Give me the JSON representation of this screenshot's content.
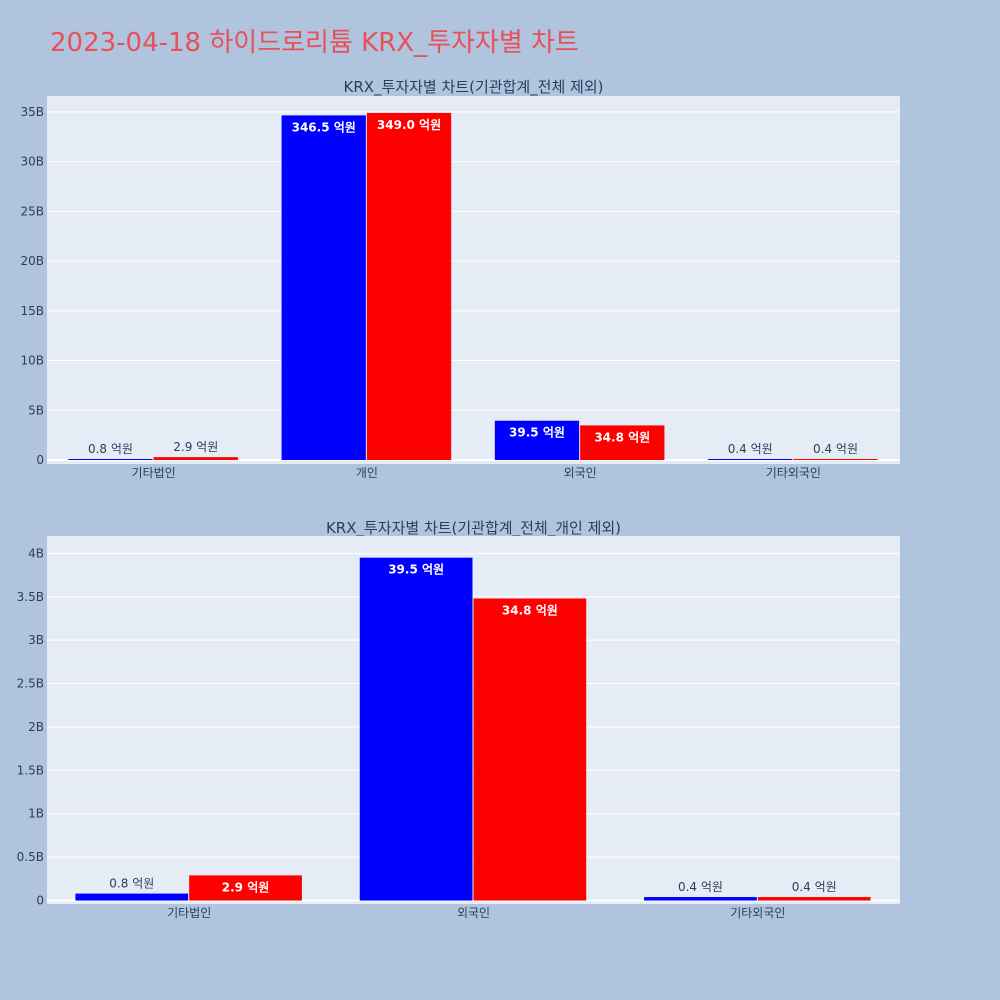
{
  "title": "2023-04-18 하이드로리튬 KRX_투자자별 차트",
  "colors": {
    "page_bg": "#b0c4de",
    "plot_bg": "#e5ecf6",
    "grid": "#ffffff",
    "series_1": "#0000ff",
    "series_2": "#ff0000",
    "title": "#e8505b",
    "text": "#2a3f5f"
  },
  "chart_data": [
    {
      "type": "bar",
      "title": "KRX_투자자별 차트(기관합계_전체 제외)",
      "categories": [
        "기타법인",
        "개인",
        "외국인",
        "기타외국인"
      ],
      "series": [
        {
          "values": [
            0.08,
            34.65,
            3.95,
            0.04
          ],
          "labels": [
            "0.8 억원",
            "346.5 억원",
            "39.5 억원",
            "0.4 억원"
          ],
          "color": "#0000ff"
        },
        {
          "values": [
            0.29,
            34.9,
            3.48,
            0.04
          ],
          "labels": [
            "2.9 억원",
            "349.0 억원",
            "34.8 억원",
            "0.4 억원"
          ],
          "color": "#ff0000"
        }
      ],
      "ylim": [
        -0.4,
        36.6
      ],
      "y_ticks": [
        0,
        5,
        10,
        15,
        20,
        25,
        30,
        35
      ],
      "y_tick_labels": [
        "0",
        "5B",
        "10B",
        "15B",
        "20B",
        "25B",
        "30B",
        "35B"
      ],
      "grid": true
    },
    {
      "type": "bar",
      "title": "KRX_투자자별 차트(기관합계_전체_개인 제외)",
      "categories": [
        "기타법인",
        "외국인",
        "기타외국인"
      ],
      "series": [
        {
          "values": [
            0.08,
            3.95,
            0.04
          ],
          "labels": [
            "0.8 억원",
            "39.5 억원",
            "0.4 억원"
          ],
          "color": "#0000ff"
        },
        {
          "values": [
            0.29,
            3.48,
            0.04
          ],
          "labels": [
            "2.9 억원",
            "34.8 억원",
            "0.4 억원"
          ],
          "color": "#ff0000"
        }
      ],
      "ylim": [
        -0.04,
        4.2
      ],
      "y_ticks": [
        0,
        0.5,
        1,
        1.5,
        2,
        2.5,
        3,
        3.5,
        4
      ],
      "y_tick_labels": [
        "0",
        "0.5B",
        "1B",
        "1.5B",
        "2B",
        "2.5B",
        "3B",
        "3.5B",
        "4B"
      ],
      "grid": true
    }
  ]
}
